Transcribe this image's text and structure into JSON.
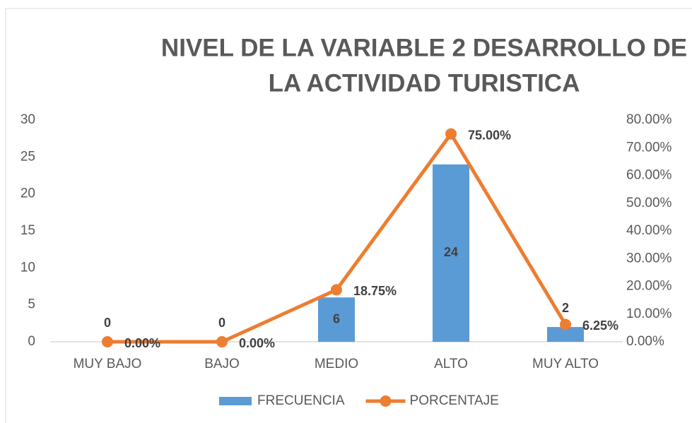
{
  "chart_data": {
    "type": "bar_line",
    "title": [
      "NIVEL DE LA VARIABLE  2 DESARROLLO DE",
      "LA ACTIVIDAD TURISTICA"
    ],
    "categories": [
      "MUY BAJO",
      "BAJO",
      "MEDIO",
      "ALTO",
      "MUY ALTO"
    ],
    "series": [
      {
        "name": "FRECUENCIA",
        "type": "bar",
        "color": "#5b9bd5",
        "values": [
          0,
          0,
          6,
          24,
          2
        ]
      },
      {
        "name": "PORCENTAJE",
        "type": "line",
        "axis": "y2",
        "color": "#ed7d31",
        "values": [
          0,
          0,
          18.75,
          75,
          6.25
        ],
        "value_labels": [
          "0.00%",
          "0.00%",
          "18.75%",
          "75.00%",
          "6.25%"
        ]
      }
    ],
    "ylim": [
      0,
      30
    ],
    "yticks": [
      0,
      5,
      10,
      15,
      20,
      25,
      30
    ],
    "y2lim": [
      0,
      80
    ],
    "y2ticks": [
      {
        "value": 0,
        "label": "0.00%"
      },
      {
        "value": 10,
        "label": "10.00%"
      },
      {
        "value": 20,
        "label": "20.00%"
      },
      {
        "value": 30,
        "label": "30.00%"
      },
      {
        "value": 40,
        "label": "40.00%"
      },
      {
        "value": 50,
        "label": "50.00%"
      },
      {
        "value": 60,
        "label": "60.00%"
      },
      {
        "value": 70,
        "label": "70.00%"
      },
      {
        "value": 80,
        "label": "80.00%"
      }
    ],
    "grid": false,
    "legend": "bottom"
  }
}
